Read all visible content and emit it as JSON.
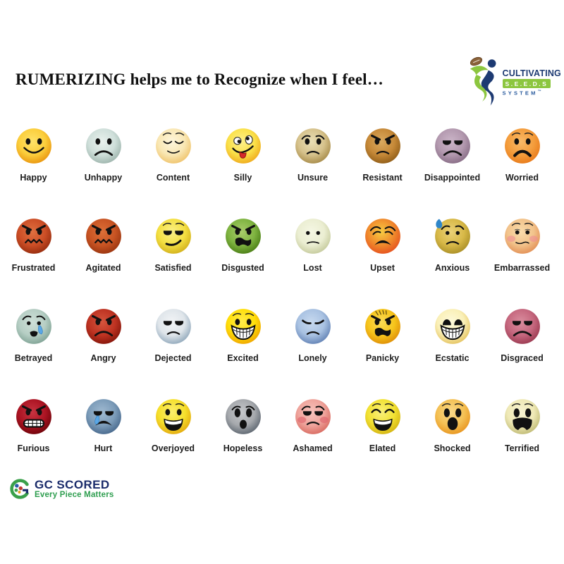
{
  "title": "RUMERIZING helps me to Recognize when I feel…",
  "header_logo": {
    "line1": "CULTIVATING",
    "line2": "S.E.E.D.S",
    "line3": "SYSTEM",
    "tm": "™"
  },
  "footer_logo": {
    "name": "GC SCORED",
    "tagline": "Every Piece Matters"
  },
  "colors": {
    "brand_navy": "#1d3a72",
    "brand_green": "#8cc63f",
    "gc_navy": "#1b2c6b",
    "gc_green": "#2e9e4f"
  },
  "emotions": [
    {
      "label": "Happy",
      "c1": "#FFE36A",
      "c2": "#FBCE3C",
      "c3": "#E9940D",
      "eyes": "oval",
      "brows": "",
      "mouth": "smile",
      "extras": []
    },
    {
      "label": "Unhappy",
      "c1": "#E9F1ED",
      "c2": "#CFDFDA",
      "c3": "#9DB4AC",
      "eyes": "oval",
      "brows": "",
      "mouth": "frown",
      "extras": []
    },
    {
      "label": "Content",
      "c1": "#FEF6DD",
      "c2": "#F9E7B4",
      "c3": "#EFC36B",
      "eyes": "closedcontent",
      "brows": "raised",
      "mouth": "softsmile",
      "extras": []
    },
    {
      "label": "Silly",
      "c1": "#FDF08C",
      "c2": "#FAE14A",
      "c3": "#EFA91C",
      "eyes": "cross",
      "brows": "",
      "mouth": "tongue",
      "extras": []
    },
    {
      "label": "Unsure",
      "c1": "#EADFB6",
      "c2": "#D6C28C",
      "c3": "#A68A48",
      "eyes": "oval",
      "brows": "worried",
      "mouth": "smallfrown",
      "extras": []
    },
    {
      "label": "Resistant",
      "c1": "#DAAA60",
      "c2": "#C68938",
      "c3": "#8F5C17",
      "eyes": "oval",
      "brows": "angry",
      "mouth": "smallfrown",
      "extras": []
    },
    {
      "label": "Disappointed",
      "c1": "#CBB5C8",
      "c2": "#B399AF",
      "c3": "#876C85",
      "eyes": "halflid",
      "brows": "",
      "mouth": "frown",
      "extras": []
    },
    {
      "label": "Worried",
      "c1": "#F9BA69",
      "c2": "#F49D3C",
      "c3": "#E87A1A",
      "eyes": "oval",
      "brows": "raised",
      "mouth": "boldfrown",
      "extras": []
    },
    {
      "label": "Frustrated",
      "c1": "#E07040",
      "c2": "#CC4E26",
      "c3": "#952C0E",
      "eyes": "oval",
      "brows": "angry",
      "mouth": "zigzag",
      "extras": []
    },
    {
      "label": "Agitated",
      "c1": "#DD7038",
      "c2": "#C85423",
      "c3": "#99340F",
      "eyes": "oval",
      "brows": "angry",
      "mouth": "zigzag",
      "extras": []
    },
    {
      "label": "Satisfied",
      "c1": "#FAF089",
      "c2": "#F4E042",
      "c3": "#D1AF1B",
      "eyes": "halflid",
      "brows": "raised",
      "mouth": "smirk",
      "extras": []
    },
    {
      "label": "Disgusted",
      "c1": "#A9CD6B",
      "c2": "#7FB441",
      "c3": "#4A7D15",
      "eyes": "oval",
      "brows": "angry",
      "mouth": "openwavy",
      "extras": []
    },
    {
      "label": "Lost",
      "c1": "#F5F7E4",
      "c2": "#EBEED2",
      "c3": "#C4C99B",
      "eyes": "dot",
      "brows": "",
      "mouth": "thinfrown",
      "extras": []
    },
    {
      "label": "Upset",
      "c1": "#F7CC42",
      "c2": "#F08A2C",
      "c3": "#E5501E",
      "eyes": "anguish",
      "brows": "",
      "mouth": "openfrown",
      "extras": []
    },
    {
      "label": "Anxious",
      "c1": "#EAD178",
      "c2": "#D8B948",
      "c3": "#A98E26",
      "eyes": "dot",
      "brows": "worried",
      "mouth": "smallfrown",
      "extras": [
        "sweat_drop"
      ]
    },
    {
      "label": "Embarrassed",
      "c1": "#F9DCAC",
      "c2": "#F2C38B",
      "c3": "#E28F55",
      "eyes": "sidelook",
      "brows": "raised",
      "mouth": "wavyline",
      "extras": [
        "blush"
      ]
    },
    {
      "label": "Betrayed",
      "c1": "#CFE0D8",
      "c2": "#B6CEC4",
      "c3": "#7FA294",
      "eyes": "dot",
      "brows": "worried",
      "mouth": "smallopen",
      "extras": [
        "tear_right"
      ]
    },
    {
      "label": "Angry",
      "c1": "#D5553D",
      "c2": "#BE3322",
      "c3": "#84150A",
      "eyes": "oval",
      "brows": "angry",
      "mouth": "frown",
      "extras": []
    },
    {
      "label": "Dejected",
      "c1": "#F2F4F6",
      "c2": "#DFE5EA",
      "c3": "#8FA7BA",
      "eyes": "halflid",
      "brows": "",
      "mouth": "smallfrown",
      "extras": []
    },
    {
      "label": "Excited",
      "c1": "#FFEC4D",
      "c2": "#FFDF0A",
      "c3": "#EFA400",
      "eyes": "oval",
      "brows": "raised",
      "mouth": "grinteeth",
      "extras": []
    },
    {
      "label": "Lonely",
      "c1": "#C7D9EF",
      "c2": "#A9C2E2",
      "c3": "#6181B4",
      "eyes": "closedsad",
      "brows": "",
      "mouth": "smallfrown",
      "extras": []
    },
    {
      "label": "Panicky",
      "c1": "#FBDC56",
      "c2": "#F6C51C",
      "c3": "#DE8D06",
      "eyes": "oval",
      "brows": "angry",
      "mouth": "openwavy",
      "extras": [
        "forehead_lines"
      ]
    },
    {
      "label": "Ecstatic",
      "c1": "#FEFADB",
      "c2": "#FAF0B8",
      "c3": "#E4C25E",
      "eyes": "talldome",
      "brows": "",
      "mouth": "grinteeth",
      "extras": []
    },
    {
      "label": "Disgraced",
      "c1": "#DA8E9F",
      "c2": "#C5677E",
      "c3": "#9A3950",
      "eyes": "halflid",
      "brows": "",
      "mouth": "frown",
      "extras": []
    },
    {
      "label": "Furious",
      "c1": "#C73441",
      "c2": "#AC1423",
      "c3": "#6E0309",
      "eyes": "oval",
      "brows": "angry",
      "mouth": "grimace",
      "extras": []
    },
    {
      "label": "Hurt",
      "c1": "#A0BAD1",
      "c2": "#7C9CB9",
      "c3": "#47688C",
      "eyes": "halflid",
      "brows": "",
      "mouth": "openfrown",
      "extras": [
        "tear_left"
      ]
    },
    {
      "label": "Overjoyed",
      "c1": "#FBEE6F",
      "c2": "#F6E02C",
      "c3": "#E3A90F",
      "eyes": "oval",
      "brows": "raised",
      "mouth": "openlaugh",
      "extras": []
    },
    {
      "label": "Hopeless",
      "c1": "#C6C8CB",
      "c2": "#A6A9AD",
      "c3": "#5D6670",
      "eyes": "wide",
      "brows": "worried",
      "mouth": "openoval",
      "extras": []
    },
    {
      "label": "Ashamed",
      "c1": "#F7C4BD",
      "c2": "#EFA49C",
      "c3": "#D86A60",
      "eyes": "halflid",
      "brows": "worried",
      "mouth": "smallfrown",
      "extras": [
        "blush_strong"
      ]
    },
    {
      "label": "Elated",
      "c1": "#F9F07B",
      "c2": "#F2E233",
      "c3": "#D3B312",
      "eyes": "closedjoy",
      "brows": "raised",
      "mouth": "openlaugh",
      "extras": []
    },
    {
      "label": "Shocked",
      "c1": "#F9D98B",
      "c2": "#F4C155",
      "c3": "#E8951F",
      "eyes": "wide",
      "brows": "raised",
      "mouth": "bigoval",
      "extras": []
    },
    {
      "label": "Terrified",
      "c1": "#F7F3D3",
      "c2": "#EFE9B6",
      "c3": "#BFBA74",
      "eyes": "wide",
      "brows": "raised",
      "mouth": "scream",
      "extras": []
    }
  ]
}
